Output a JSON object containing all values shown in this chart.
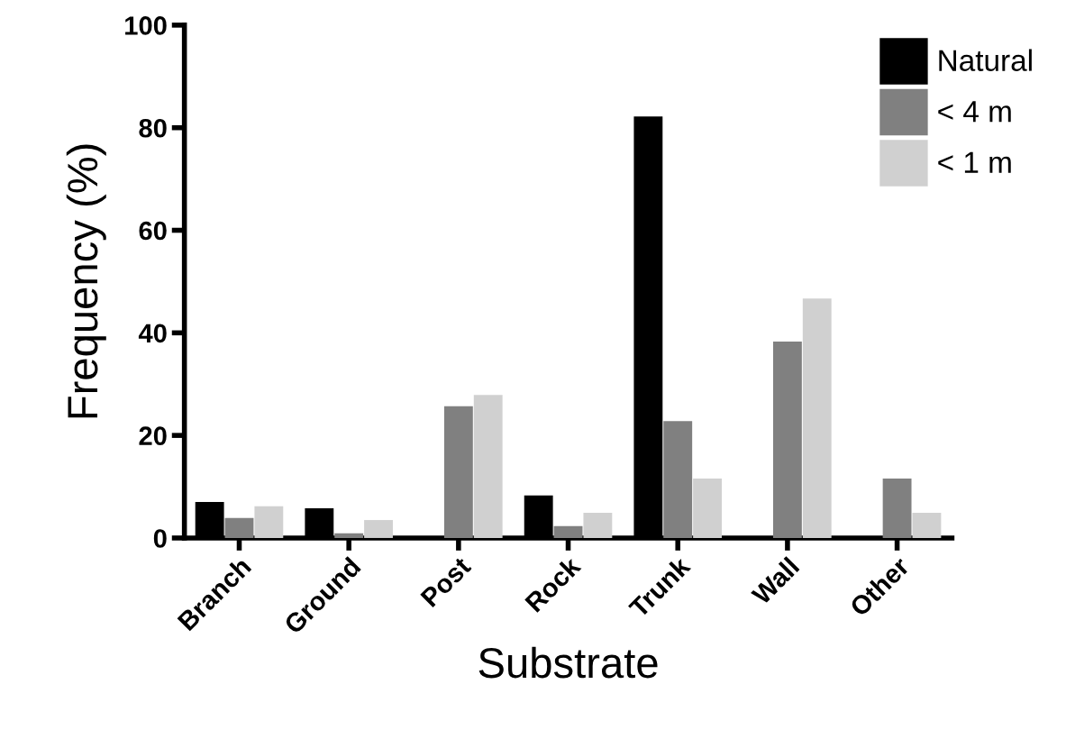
{
  "chart_data": {
    "type": "bar",
    "xlabel": "Substrate",
    "ylabel": "Frequency (%)",
    "categories": [
      "Branch",
      "Ground",
      "Post",
      "Rock",
      "Trunk",
      "Wall",
      "Other"
    ],
    "series": [
      {
        "name": "Natural",
        "color": "#000000",
        "values": [
          7.0,
          5.8,
          0,
          8.3,
          82.2,
          0,
          0
        ]
      },
      {
        "name": "< 4 m",
        "color": "#808080",
        "values": [
          3.9,
          0.9,
          25.7,
          2.3,
          22.8,
          38.3,
          11.6
        ]
      },
      {
        "name": "< 1 m",
        "color": "#d0d0d0",
        "values": [
          6.2,
          3.5,
          27.9,
          4.9,
          11.6,
          46.7,
          4.9
        ]
      }
    ],
    "ylim": [
      0,
      100
    ],
    "yticks": [
      0,
      20,
      40,
      60,
      80,
      100
    ],
    "grid": false,
    "legend": "top right"
  }
}
